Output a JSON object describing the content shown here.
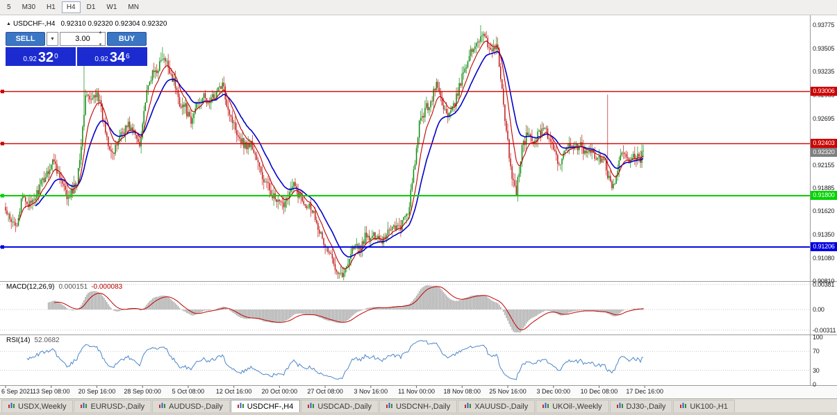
{
  "window": {
    "app": "MetaTrader 4"
  },
  "colors": {
    "accent_blue": "#3a76c4",
    "price_box_blue": "#1c2bd0",
    "candle_up": "#0a8a0a",
    "candle_down": "#c41616",
    "ma_fast_red": "#c00000",
    "ma_slow_blue": "#0000c8",
    "line_red": "#cc0000",
    "line_green": "#00d300",
    "line_blue": "#0000e0",
    "macd_hist": "#ababab",
    "macd_signal": "#c00000",
    "rsi_line": "#4a86c8",
    "tag_current": "#7f7f7f"
  },
  "toolbar": {
    "timeframes": [
      {
        "label": "5",
        "active": false
      },
      {
        "label": "M30",
        "active": false
      },
      {
        "label": "H1",
        "active": false
      },
      {
        "label": "H4",
        "active": true
      },
      {
        "label": "D1",
        "active": false
      },
      {
        "label": "W1",
        "active": false
      },
      {
        "label": "MN",
        "active": false
      }
    ]
  },
  "chart": {
    "title_symbol": "USDCHF-,H4",
    "title_ohlc": "0.92310 0.92320 0.92304 0.92320",
    "trade_panel": {
      "sell_label": "SELL",
      "buy_label": "BUY",
      "volume": "3.00",
      "sell_price": {
        "base": "0.92",
        "big": "32",
        "sup": "0"
      },
      "buy_price": {
        "base": "0.92",
        "big": "34",
        "sup": "6"
      }
    },
    "horizontal_lines": [
      {
        "price": 0.93006,
        "label": "0.93006",
        "color": "#cc0000",
        "width": 1.4
      },
      {
        "price": 0.92403,
        "label": "0.92403",
        "color": "#cc0000",
        "width": 1.4
      },
      {
        "price": 0.918,
        "label": "0.91800",
        "color": "#00d300",
        "width": 2
      },
      {
        "price": 0.91206,
        "label": "0.91206",
        "color": "#0000e0",
        "width": 2
      }
    ],
    "current_price_tag": {
      "price": 0.9232,
      "label": "0.92320",
      "color": "#7f7f7f"
    },
    "price_axis_ticks": [
      "0.93775",
      "0.93505",
      "0.93235",
      "0.92965",
      "0.92695",
      "0.92155",
      "0.91885",
      "0.91620",
      "0.91350",
      "0.91080",
      "0.90810"
    ]
  },
  "macd_panel": {
    "name": "MACD(12,26,9)",
    "value1": "0.000151",
    "value2": "-0.000083",
    "axis": [
      "0.00381",
      "0.00",
      "-0.00311"
    ]
  },
  "rsi_panel": {
    "name": "RSI(14)",
    "value": "52.0682",
    "axis": [
      "100",
      "70",
      "30",
      "0"
    ]
  },
  "tabs": [
    {
      "label": "USDX,Weekly",
      "active": false
    },
    {
      "label": "EURUSD-,Daily",
      "active": false
    },
    {
      "label": "AUDUSD-,Daily",
      "active": false
    },
    {
      "label": "USDCHF-,H4",
      "active": true
    },
    {
      "label": "USDCAD-,Daily",
      "active": false
    },
    {
      "label": "USDCNH-,Daily",
      "active": false
    },
    {
      "label": "XAUUSD-,Daily",
      "active": false
    },
    {
      "label": "UKOil-,Weekly",
      "active": false
    },
    {
      "label": "DJ30-,Daily",
      "active": false
    },
    {
      "label": "UK100-,H1",
      "active": false
    }
  ],
  "chart_data": {
    "type": "candlestick",
    "symbol": "USDCHF-",
    "timeframe": "H4",
    "ohlc_current": {
      "open": 0.9231,
      "high": 0.9232,
      "low": 0.92304,
      "close": 0.9232
    },
    "bid": 0.9232,
    "ask": 0.92346,
    "y_range": [
      0.9086,
      0.9384
    ],
    "candles": 448,
    "price_waypoints": [
      [
        0,
        0.9162
      ],
      [
        4,
        0.9147
      ],
      [
        8,
        0.915
      ],
      [
        12,
        0.9178
      ],
      [
        18,
        0.9168
      ],
      [
        24,
        0.919
      ],
      [
        30,
        0.921
      ],
      [
        34,
        0.9222
      ],
      [
        38,
        0.92
      ],
      [
        44,
        0.9175
      ],
      [
        50,
        0.9198
      ],
      [
        54,
        0.9255
      ],
      [
        56,
        0.9298
      ],
      [
        60,
        0.9288
      ],
      [
        64,
        0.9302
      ],
      [
        68,
        0.927
      ],
      [
        72,
        0.9242
      ],
      [
        76,
        0.9228
      ],
      [
        80,
        0.925
      ],
      [
        86,
        0.9262
      ],
      [
        90,
        0.9252
      ],
      [
        94,
        0.924
      ],
      [
        98,
        0.929
      ],
      [
        102,
        0.9318
      ],
      [
        106,
        0.9326
      ],
      [
        110,
        0.9338
      ],
      [
        114,
        0.933
      ],
      [
        118,
        0.9312
      ],
      [
        122,
        0.9288
      ],
      [
        126,
        0.9282
      ],
      [
        130,
        0.9262
      ],
      [
        134,
        0.9288
      ],
      [
        138,
        0.9295
      ],
      [
        142,
        0.9288
      ],
      [
        146,
        0.9295
      ],
      [
        150,
        0.9305
      ],
      [
        152,
        0.9308
      ],
      [
        156,
        0.9282
      ],
      [
        160,
        0.9262
      ],
      [
        164,
        0.9248
      ],
      [
        168,
        0.9238
      ],
      [
        172,
        0.924
      ],
      [
        176,
        0.9222
      ],
      [
        180,
        0.92
      ],
      [
        186,
        0.9185
      ],
      [
        190,
        0.9172
      ],
      [
        194,
        0.9168
      ],
      [
        198,
        0.9182
      ],
      [
        202,
        0.9192
      ],
      [
        206,
        0.918
      ],
      [
        210,
        0.9172
      ],
      [
        214,
        0.9168
      ],
      [
        218,
        0.9152
      ],
      [
        222,
        0.9128
      ],
      [
        226,
        0.9116
      ],
      [
        230,
        0.9102
      ],
      [
        234,
        0.9092
      ],
      [
        237,
        0.9088
      ],
      [
        240,
        0.9105
      ],
      [
        244,
        0.9122
      ],
      [
        248,
        0.9118
      ],
      [
        252,
        0.9132
      ],
      [
        256,
        0.913
      ],
      [
        260,
        0.9135
      ],
      [
        264,
        0.9128
      ],
      [
        268,
        0.914
      ],
      [
        272,
        0.9146
      ],
      [
        276,
        0.9142
      ],
      [
        278,
        0.9148
      ],
      [
        282,
        0.916
      ],
      [
        286,
        0.9205
      ],
      [
        290,
        0.9262
      ],
      [
        294,
        0.928
      ],
      [
        298,
        0.9288
      ],
      [
        302,
        0.931
      ],
      [
        306,
        0.9288
      ],
      [
        310,
        0.927
      ],
      [
        314,
        0.9282
      ],
      [
        318,
        0.9305
      ],
      [
        322,
        0.933
      ],
      [
        326,
        0.9345
      ],
      [
        330,
        0.9358
      ],
      [
        334,
        0.9368
      ],
      [
        338,
        0.9355
      ],
      [
        342,
        0.9348
      ],
      [
        344,
        0.9358
      ],
      [
        346,
        0.9332
      ],
      [
        348,
        0.93
      ],
      [
        350,
        0.9268
      ],
      [
        352,
        0.924
      ],
      [
        354,
        0.9212
      ],
      [
        356,
        0.9195
      ],
      [
        358,
        0.9186
      ],
      [
        360,
        0.921
      ],
      [
        362,
        0.9235
      ],
      [
        366,
        0.9252
      ],
      [
        370,
        0.9242
      ],
      [
        374,
        0.9252
      ],
      [
        378,
        0.9262
      ],
      [
        380,
        0.9248
      ],
      [
        384,
        0.9232
      ],
      [
        388,
        0.9212
      ],
      [
        390,
        0.9228
      ],
      [
        394,
        0.924
      ],
      [
        398,
        0.9232
      ],
      [
        402,
        0.924
      ],
      [
        406,
        0.9228
      ],
      [
        410,
        0.9235
      ],
      [
        414,
        0.922
      ],
      [
        418,
        0.9224
      ],
      [
        420,
        0.9218
      ],
      [
        422,
        0.9205
      ],
      [
        425,
        0.9185
      ],
      [
        428,
        0.9205
      ],
      [
        431,
        0.9222
      ],
      [
        434,
        0.923
      ],
      [
        438,
        0.922
      ],
      [
        442,
        0.9226
      ],
      [
        445,
        0.922
      ],
      [
        447,
        0.9232
      ]
    ],
    "spikes": [
      {
        "i": 55,
        "high": 0.9332
      },
      {
        "i": 110,
        "high": 0.9352
      },
      {
        "i": 152,
        "high": 0.9316
      },
      {
        "i": 234,
        "low": 0.9084
      },
      {
        "i": 333,
        "high": 0.93775
      },
      {
        "i": 422,
        "high": 0.9297
      }
    ],
    "x_labels": [
      {
        "i": 0,
        "label": "6 Sep 2021"
      },
      {
        "i": 32,
        "label": "13 Sep 08:00"
      },
      {
        "i": 64,
        "label": "20 Sep 16:00"
      },
      {
        "i": 96,
        "label": "28 Sep 00:00"
      },
      {
        "i": 128,
        "label": "5 Oct 08:00"
      },
      {
        "i": 160,
        "label": "12 Oct 16:00"
      },
      {
        "i": 192,
        "label": "20 Oct 00:00"
      },
      {
        "i": 224,
        "label": "27 Oct 08:00"
      },
      {
        "i": 256,
        "label": "3 Nov 16:00"
      },
      {
        "i": 288,
        "label": "11 Nov 00:00"
      },
      {
        "i": 320,
        "label": "18 Nov 08:00"
      },
      {
        "i": 352,
        "label": "25 Nov 16:00"
      },
      {
        "i": 384,
        "label": "3 Dec 00:00"
      },
      {
        "i": 416,
        "label": "10 Dec 08:00"
      },
      {
        "i": 448,
        "label": "17 Dec 16:00"
      }
    ],
    "indicators": {
      "macd": {
        "params": [
          12,
          26,
          9
        ],
        "value": 0.000151,
        "signal": -8.3e-05,
        "axis_max": 0.00381,
        "axis_min": -0.00311
      },
      "rsi": {
        "period": 14,
        "value": 52.0682,
        "levels": [
          70,
          30
        ]
      },
      "moving_averages": [
        {
          "type": "ema",
          "period": 21,
          "color": "#0000c8"
        },
        {
          "type": "ema",
          "period": 9,
          "color": "#c00000"
        }
      ]
    }
  }
}
